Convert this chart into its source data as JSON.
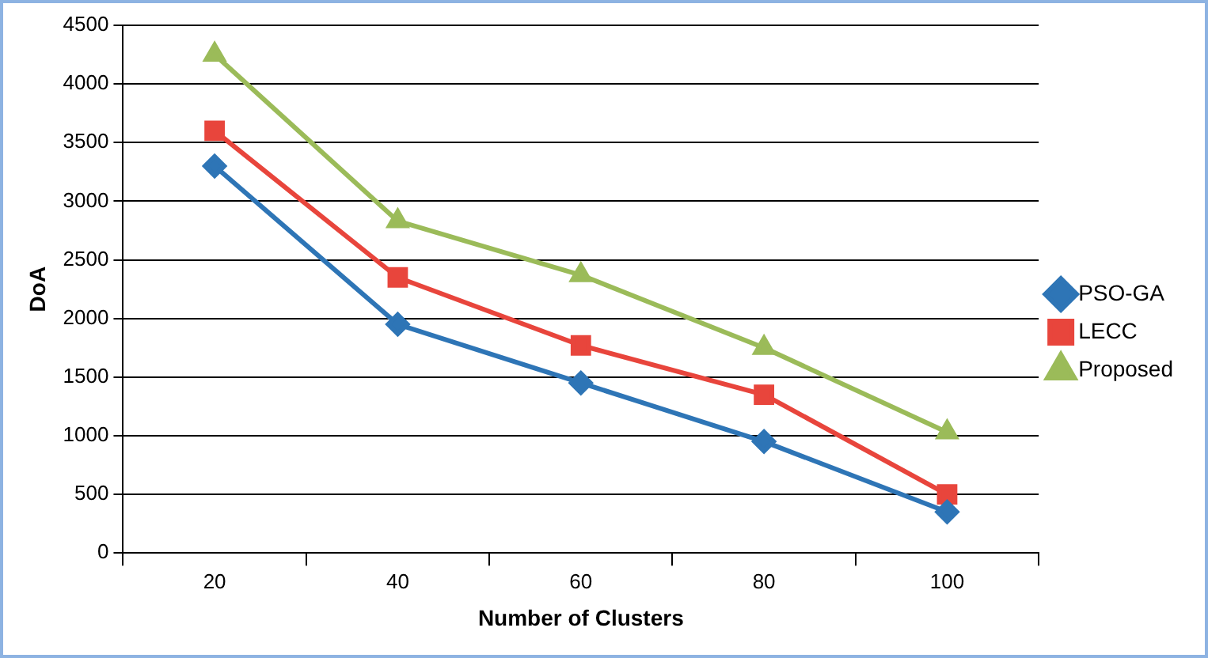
{
  "chart_data": {
    "type": "line",
    "xlabel": "Number of Clusters",
    "ylabel": "DoA",
    "categories": [
      "20",
      "40",
      "60",
      "80",
      "100"
    ],
    "series": [
      {
        "name": "PSO-GA",
        "color": "#2e75b6",
        "marker": "diamond",
        "values": [
          3300,
          1950,
          1450,
          950,
          350
        ]
      },
      {
        "name": "LECC",
        "color": "#e8453c",
        "marker": "square",
        "values": [
          3600,
          2350,
          1770,
          1350,
          500
        ]
      },
      {
        "name": "Proposed",
        "color": "#9bbb59",
        "marker": "triangle",
        "values": [
          4250,
          2830,
          2370,
          1750,
          1030
        ]
      }
    ],
    "ylim": [
      0,
      4500
    ],
    "yticks": [
      0,
      500,
      1000,
      1500,
      2000,
      2500,
      3000,
      3500,
      4000,
      4500
    ],
    "grid": "y",
    "legend": "right"
  }
}
